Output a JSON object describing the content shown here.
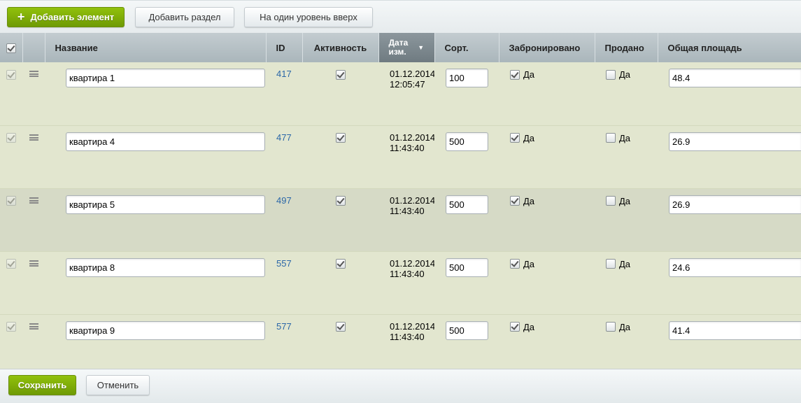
{
  "toolbar": {
    "add_element": "Добавить элемент",
    "add_section": "Добавить раздел",
    "level_up": "На один уровень вверх"
  },
  "columns": {
    "name": "Название",
    "id": "ID",
    "active": "Активность",
    "date_l1": "Дата",
    "date_l2": "изм.",
    "sort": "Сорт.",
    "reserved": "Забронировано",
    "sold": "Продано",
    "area": "Общая площадь"
  },
  "yes_label": "Да",
  "rows": [
    {
      "name": "квартира 1",
      "id": "417",
      "date": "01.12.2014",
      "time": "12:05:47",
      "sort": "100",
      "reserved": true,
      "sold": false,
      "area": "48.4"
    },
    {
      "name": "квартира 4",
      "id": "477",
      "date": "01.12.2014",
      "time": "11:43:40",
      "sort": "500",
      "reserved": true,
      "sold": false,
      "area": "26.9"
    },
    {
      "name": "квартира 5",
      "id": "497",
      "date": "01.12.2014",
      "time": "11:43:40",
      "sort": "500",
      "reserved": true,
      "sold": false,
      "area": "26.9"
    },
    {
      "name": "квартира 8",
      "id": "557",
      "date": "01.12.2014",
      "time": "11:43:40",
      "sort": "500",
      "reserved": true,
      "sold": false,
      "area": "24.6"
    },
    {
      "name": "квартира 9",
      "id": "577",
      "date": "01.12.2014",
      "time": "11:43:40",
      "sort": "500",
      "reserved": true,
      "sold": false,
      "area": "41.4"
    }
  ],
  "footer": {
    "save": "Сохранить",
    "cancel": "Отменить"
  }
}
